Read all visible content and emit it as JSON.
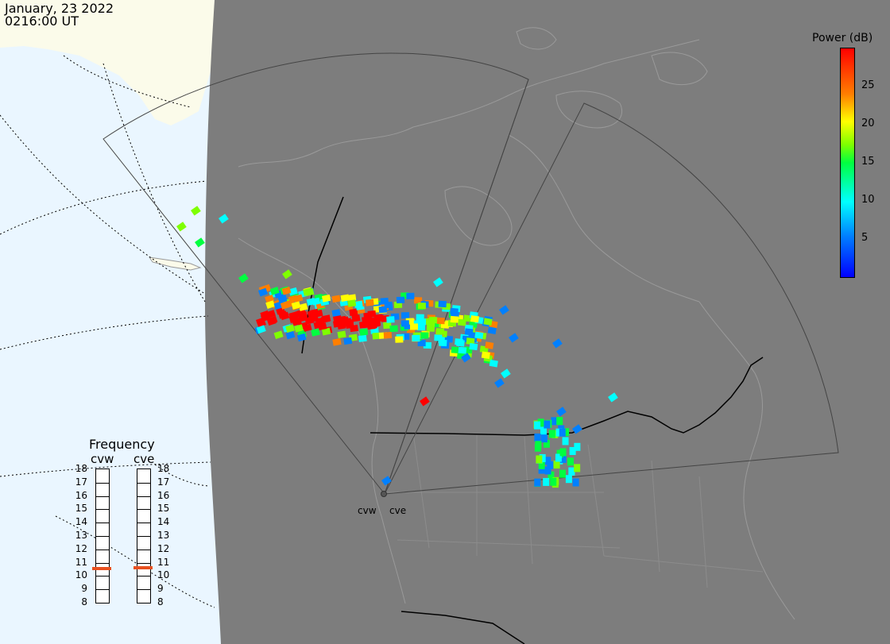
{
  "header": {
    "date": "January, 23 2022",
    "time": "0216:00 UT"
  },
  "colorbar": {
    "title": "Power (dB)",
    "ticks": [
      "25",
      "20",
      "15",
      "10",
      "5"
    ],
    "tick_values": [
      25,
      20,
      15,
      10,
      5
    ],
    "range": [
      0,
      30
    ],
    "colors": [
      "#0000ff",
      "#0080ff",
      "#00ffff",
      "#00ff40",
      "#7fff00",
      "#ffff00",
      "#ff7f00",
      "#ff0000"
    ]
  },
  "frequency": {
    "title": "Frequency",
    "radars": [
      {
        "code": "cvw",
        "value_mhz": 10.6
      },
      {
        "code": "cve",
        "value_mhz": 10.7
      }
    ],
    "scale": [
      "18",
      "17",
      "16",
      "15",
      "14",
      "13",
      "12",
      "11",
      "10",
      "9",
      "8"
    ]
  },
  "radars": [
    {
      "code": "cvw"
    },
    {
      "code": "cve"
    }
  ],
  "colors": {
    "night": "#7d7d7d",
    "day_ocean": "#eaf6ff",
    "day_land": "#fbfbea",
    "coast": "#9a9a9a",
    "border": "#000000"
  }
}
